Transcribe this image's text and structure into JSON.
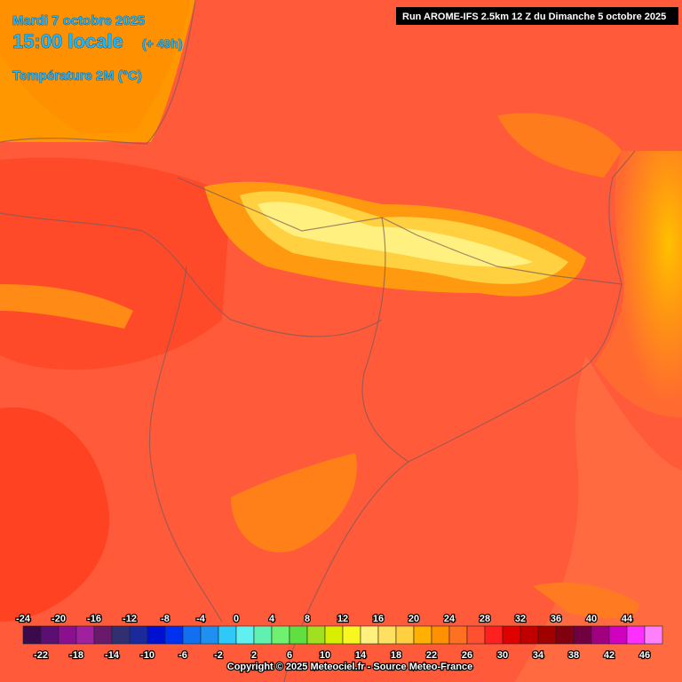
{
  "header": {
    "date": "Mardi 7 octobre 2025",
    "time": "15:00 locale",
    "lead": "(+ 49h)",
    "variable": "Température 2M (°C)",
    "run": "Run AROME-IFS 2.5km 12 Z du Dimanche 5 octobre 2025"
  },
  "legend": {
    "labels": [
      -24,
      -22,
      -20,
      -18,
      -16,
      -14,
      -12,
      -10,
      -8,
      -6,
      -4,
      -2,
      0,
      2,
      4,
      6,
      8,
      10,
      12,
      14,
      16,
      18,
      20,
      22,
      24,
      26,
      28,
      30,
      32,
      34,
      36,
      38,
      40,
      42,
      44,
      46
    ],
    "colors": [
      "#3a0a4a",
      "#5a1070",
      "#8a1090",
      "#a020a0",
      "#6a1a6a",
      "#303070",
      "#1a2a9a",
      "#0010d0",
      "#0030f0",
      "#1070f0",
      "#2090f0",
      "#30c8f8",
      "#60f0f0",
      "#60f0b0",
      "#70f070",
      "#60e040",
      "#a0e020",
      "#d8f000",
      "#f8f820",
      "#fff080",
      "#ffe060",
      "#ffd040",
      "#ffb000",
      "#ff9000",
      "#ff7020",
      "#ff5030",
      "#ff2020",
      "#e00000",
      "#c00000",
      "#a00000",
      "#800010",
      "#700040",
      "#a00080",
      "#d000c0",
      "#ff30ff",
      "#ff80ff"
    ]
  },
  "footer": {
    "copyright": "Copyright © 2025 Meteociel.fr - Source Meteo-France"
  }
}
